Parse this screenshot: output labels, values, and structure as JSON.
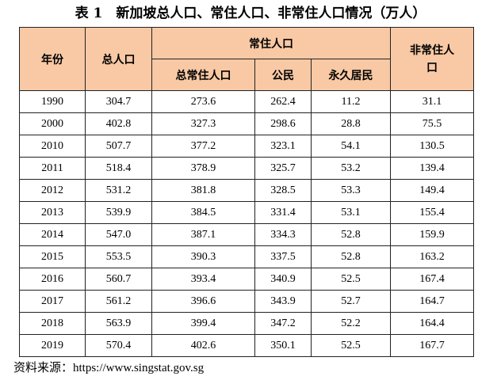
{
  "title": "表 1　新加坡总人口、常住人口、非常住人口情况（万人）",
  "headers": {
    "year": "年份",
    "total": "总人口",
    "resident_group": "常住人口",
    "resident_total": "总常住人口",
    "citizen": "公民",
    "pr": "永久居民",
    "nonresident_line1": "非常住人",
    "nonresident_line2": "口"
  },
  "rows": [
    [
      "1990",
      "304.7",
      "273.6",
      "262.4",
      "11.2",
      "31.1"
    ],
    [
      "2000",
      "402.8",
      "327.3",
      "298.6",
      "28.8",
      "75.5"
    ],
    [
      "2010",
      "507.7",
      "377.2",
      "323.1",
      "54.1",
      "130.5"
    ],
    [
      "2011",
      "518.4",
      "378.9",
      "325.7",
      "53.2",
      "139.4"
    ],
    [
      "2012",
      "531.2",
      "381.8",
      "328.5",
      "53.3",
      "149.4"
    ],
    [
      "2013",
      "539.9",
      "384.5",
      "331.4",
      "53.1",
      "155.4"
    ],
    [
      "2014",
      "547.0",
      "387.1",
      "334.3",
      "52.8",
      "159.9"
    ],
    [
      "2015",
      "553.5",
      "390.3",
      "337.5",
      "52.8",
      "163.2"
    ],
    [
      "2016",
      "560.7",
      "393.4",
      "340.9",
      "52.5",
      "167.4"
    ],
    [
      "2017",
      "561.2",
      "396.6",
      "343.9",
      "52.7",
      "164.7"
    ],
    [
      "2018",
      "563.9",
      "399.4",
      "347.2",
      "52.2",
      "164.4"
    ],
    [
      "2019",
      "570.4",
      "402.6",
      "350.1",
      "52.5",
      "167.7"
    ]
  ],
  "source": "资料来源：https://www.singstat.gov.sg"
}
